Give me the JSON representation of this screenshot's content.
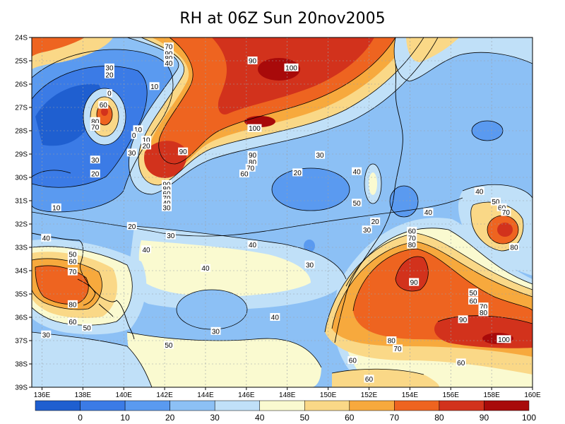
{
  "title": "RH at 06Z Sun 20nov2005",
  "colors": {
    "background": "#ffffff",
    "land_coast": "#000000",
    "grid": "#9aa0a8",
    "bins": [
      "#1f5fd0",
      "#3b7be6",
      "#5a9af0",
      "#8cc0f5",
      "#c0e0f8",
      "#fafad0",
      "#fad887",
      "#f7a93d",
      "#ee6420",
      "#d2321c",
      "#a80a0a"
    ]
  },
  "map": {
    "lon_range": [
      135.5,
      160
    ],
    "lat_range": [
      -39,
      -24
    ],
    "x_ticks": [
      "136E",
      "138E",
      "140E",
      "142E",
      "144E",
      "146E",
      "148E",
      "150E",
      "152E",
      "154E",
      "156E",
      "158E",
      "160E"
    ],
    "y_ticks": [
      "24S",
      "25S",
      "26S",
      "27S",
      "28S",
      "29S",
      "30S",
      "31S",
      "32S",
      "33S",
      "34S",
      "35S",
      "36S",
      "37S",
      "38S",
      "39S"
    ],
    "contour_labels": [
      {
        "text": "30",
        "lon": 139.3,
        "lat": -25.3
      },
      {
        "text": "20",
        "lon": 139.3,
        "lat": -25.6
      },
      {
        "text": "70",
        "lon": 142.2,
        "lat": -24.4
      },
      {
        "text": "90",
        "lon": 142.2,
        "lat": -24.7
      },
      {
        "text": "80",
        "lon": 142.2,
        "lat": -24.9
      },
      {
        "text": "40",
        "lon": 142.2,
        "lat": -25.1
      },
      {
        "text": "90",
        "lon": 146.3,
        "lat": -25.0
      },
      {
        "text": "100",
        "lon": 148.2,
        "lat": -25.3
      },
      {
        "text": "10",
        "lon": 141.5,
        "lat": -26.1
      },
      {
        "text": "0",
        "lon": 139.3,
        "lat": -26.4
      },
      {
        "text": "60",
        "lon": 139.0,
        "lat": -26.9
      },
      {
        "text": "80",
        "lon": 138.6,
        "lat": -27.6
      },
      {
        "text": "70",
        "lon": 138.6,
        "lat": -27.85
      },
      {
        "text": "10",
        "lon": 140.7,
        "lat": -27.95
      },
      {
        "text": "0",
        "lon": 140.5,
        "lat": -28.2
      },
      {
        "text": "10",
        "lon": 141.1,
        "lat": -28.4
      },
      {
        "text": "20",
        "lon": 141.1,
        "lat": -28.65
      },
      {
        "text": "30",
        "lon": 140.4,
        "lat": -28.95
      },
      {
        "text": "100",
        "lon": 146.4,
        "lat": -27.9
      },
      {
        "text": "90",
        "lon": 142.9,
        "lat": -28.9
      },
      {
        "text": "90",
        "lon": 146.3,
        "lat": -29.05
      },
      {
        "text": "80",
        "lon": 146.3,
        "lat": -29.35
      },
      {
        "text": "70",
        "lon": 146.2,
        "lat": -29.6
      },
      {
        "text": "60",
        "lon": 145.9,
        "lat": -29.85
      },
      {
        "text": "30",
        "lon": 138.6,
        "lat": -29.25
      },
      {
        "text": "20",
        "lon": 138.6,
        "lat": -29.85
      },
      {
        "text": "30",
        "lon": 149.6,
        "lat": -29.05
      },
      {
        "text": "20",
        "lon": 148.5,
        "lat": -29.8
      },
      {
        "text": "40",
        "lon": 151.4,
        "lat": -29.75
      },
      {
        "text": "90",
        "lon": 142.1,
        "lat": -30.3
      },
      {
        "text": "80",
        "lon": 142.1,
        "lat": -30.5
      },
      {
        "text": "60",
        "lon": 142.1,
        "lat": -30.7
      },
      {
        "text": "70",
        "lon": 142.1,
        "lat": -30.9
      },
      {
        "text": "40",
        "lon": 142.1,
        "lat": -31.1
      },
      {
        "text": "30",
        "lon": 142.1,
        "lat": -31.3
      },
      {
        "text": "50",
        "lon": 151.4,
        "lat": -31.1
      },
      {
        "text": "10",
        "lon": 136.7,
        "lat": -31.3
      },
      {
        "text": "40",
        "lon": 154.9,
        "lat": -31.5
      },
      {
        "text": "40",
        "lon": 157.4,
        "lat": -30.6
      },
      {
        "text": "50",
        "lon": 158.2,
        "lat": -31.05
      },
      {
        "text": "60",
        "lon": 158.5,
        "lat": -31.3
      },
      {
        "text": "70",
        "lon": 158.7,
        "lat": -31.5
      },
      {
        "text": "20",
        "lon": 152.3,
        "lat": -31.9
      },
      {
        "text": "30",
        "lon": 151.9,
        "lat": -32.25
      },
      {
        "text": "60",
        "lon": 154.1,
        "lat": -32.3
      },
      {
        "text": "70",
        "lon": 154.1,
        "lat": -32.6
      },
      {
        "text": "80",
        "lon": 154.1,
        "lat": -32.9
      },
      {
        "text": "20",
        "lon": 140.4,
        "lat": -32.1
      },
      {
        "text": "30",
        "lon": 142.3,
        "lat": -32.5
      },
      {
        "text": "40",
        "lon": 136.2,
        "lat": -32.6
      },
      {
        "text": "40",
        "lon": 146.3,
        "lat": -32.9
      },
      {
        "text": "40",
        "lon": 141.1,
        "lat": -33.1
      },
      {
        "text": "80",
        "lon": 159.1,
        "lat": -33.0
      },
      {
        "text": "50",
        "lon": 137.5,
        "lat": -33.3
      },
      {
        "text": "60",
        "lon": 137.5,
        "lat": -33.6
      },
      {
        "text": "70",
        "lon": 137.5,
        "lat": -34.05
      },
      {
        "text": "40",
        "lon": 144.0,
        "lat": -33.9
      },
      {
        "text": "30",
        "lon": 149.1,
        "lat": -33.75
      },
      {
        "text": "90",
        "lon": 154.2,
        "lat": -34.5
      },
      {
        "text": "50",
        "lon": 157.1,
        "lat": -34.95
      },
      {
        "text": "60",
        "lon": 157.1,
        "lat": -35.3
      },
      {
        "text": "70",
        "lon": 157.6,
        "lat": -35.55
      },
      {
        "text": "80",
        "lon": 157.6,
        "lat": -35.8
      },
      {
        "text": "80",
        "lon": 137.5,
        "lat": -35.45
      },
      {
        "text": "60",
        "lon": 137.5,
        "lat": -36.2
      },
      {
        "text": "50",
        "lon": 138.2,
        "lat": -36.45
      },
      {
        "text": "40",
        "lon": 147.4,
        "lat": -36.0
      },
      {
        "text": "90",
        "lon": 156.6,
        "lat": -36.1
      },
      {
        "text": "30",
        "lon": 136.2,
        "lat": -36.75
      },
      {
        "text": "30",
        "lon": 144.5,
        "lat": -36.6
      },
      {
        "text": "100",
        "lon": 158.6,
        "lat": -36.95
      },
      {
        "text": "80",
        "lon": 153.1,
        "lat": -37.0
      },
      {
        "text": "70",
        "lon": 153.4,
        "lat": -37.35
      },
      {
        "text": "50",
        "lon": 142.2,
        "lat": -37.2
      },
      {
        "text": "60",
        "lon": 151.2,
        "lat": -37.85
      },
      {
        "text": "60",
        "lon": 156.5,
        "lat": -37.95
      },
      {
        "text": "60",
        "lon": 152.0,
        "lat": -38.65
      }
    ]
  },
  "colorbar": {
    "labels": [
      "0",
      "10",
      "20",
      "30",
      "40",
      "50",
      "60",
      "70",
      "80",
      "90",
      "100"
    ]
  }
}
